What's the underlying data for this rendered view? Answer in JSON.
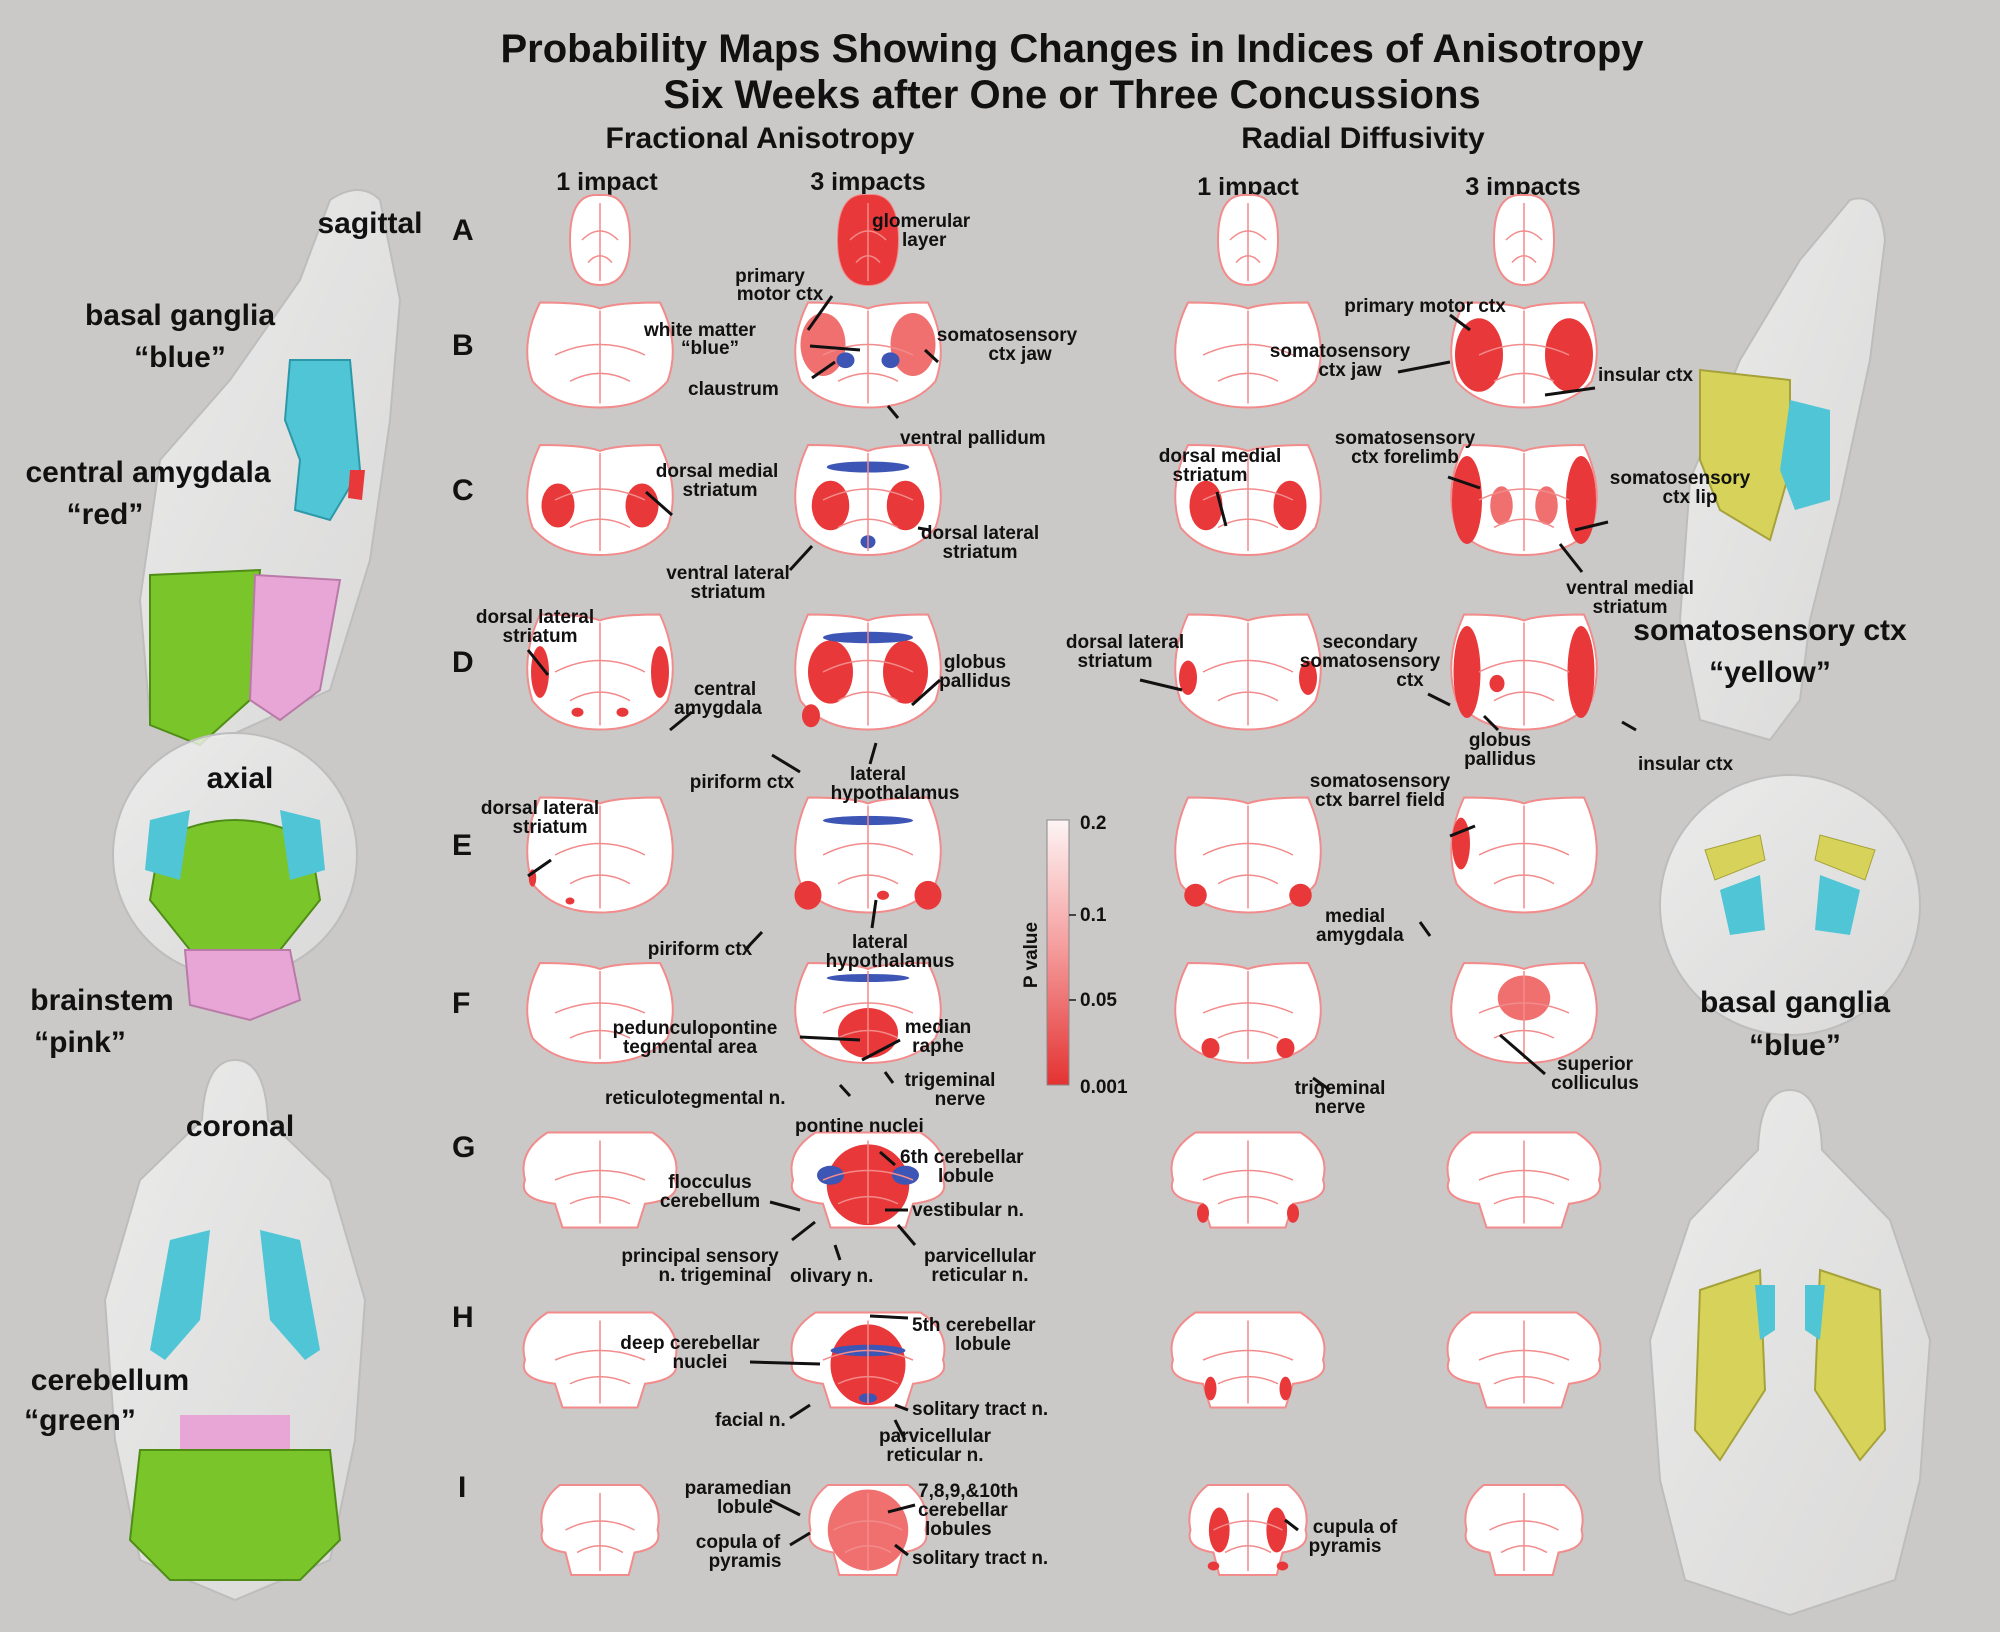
{
  "title": {
    "line1": "Probability Maps Showing Changes in Indices of Anisotropy",
    "line2": "Six Weeks after One or Three Concussions"
  },
  "columns": {
    "fa": "Fractional Anisotropy",
    "rd": "Radial Diffusivity",
    "one_impact": "1 impact",
    "three_impacts": "3 impacts"
  },
  "rows": [
    "A",
    "B",
    "C",
    "D",
    "E",
    "F",
    "G",
    "H",
    "I"
  ],
  "left_views": {
    "sagittal": "sagittal",
    "basal_ganglia_1": "basal ganglia",
    "blue_1": "“blue”",
    "central_amygdala": "central amygdala",
    "red": "“red”",
    "axial": "axial",
    "brainstem": "brainstem",
    "pink": "“pink”",
    "coronal": "coronal",
    "cerebellum": "cerebellum",
    "green": "“green”"
  },
  "right_views": {
    "somatosensory_ctx": "somatosensory ctx",
    "yellow": "“yellow”",
    "basal_ganglia_2": "basal ganglia",
    "blue_2": "“blue”"
  },
  "colorbar": {
    "axis_label": "P value",
    "ticks": [
      "0.2",
      "0.1",
      "0.05",
      "0.001"
    ],
    "tick_values": [
      0.2,
      0.1,
      0.05,
      0.001
    ],
    "color_low": "#e83a3a",
    "color_high": "#fdf2f2"
  },
  "colors": {
    "background": "#cbc9c7",
    "sig_red": "#e8383a",
    "mid_red": "#f07070",
    "outline_red": "#f28b8b",
    "blue": "#3d55b5",
    "cyan": "#4fc5d6",
    "green": "#7ac52a",
    "pink": "#e7a6d6",
    "yellow": "#d7d35a"
  },
  "labels": {
    "glomerular_1": "glomerular",
    "layer": "layer",
    "primary_1": "primary",
    "motor_ctx": "motor ctx",
    "white_matter": "white matter",
    "blue_wm": "“blue”",
    "claustrum": "claustrum",
    "somatosensory_jaw_1": "somatosensory",
    "ctx_jaw_1": "ctx jaw",
    "ventral_pallidum": "ventral pallidum",
    "primary_motor_ctx_rd": "primary motor ctx",
    "somatosensory_jaw_2": "somatosensory",
    "ctx_jaw_2": "ctx jaw",
    "insular_ctx_1": "insular ctx",
    "dms_1": "dorsal medial",
    "striatum_1": "striatum",
    "dls_c1": "dorsal lateral",
    "striatum_c1": "striatum",
    "vls_1": "ventral lateral",
    "striatum_v": "striatum",
    "dms_2": "dorsal medial",
    "striatum_2": "striatum",
    "ss_forelimb_1": "somatosensory",
    "ctx_forelimb": "ctx forelimb",
    "ss_lip_1": "somatosensory",
    "ctx_lip": "ctx lip",
    "vms_1": "ventral medial",
    "striatum_vm": "striatum",
    "dls_d1": "dorsal lateral",
    "striatum_d1": "striatum",
    "central_1": "central",
    "amygdala_1": "amygdala",
    "globus_1": "globus",
    "pallidus_1": "pallidus",
    "piriform_1": "piriform ctx",
    "lateral_1": "lateral",
    "hypothalamus_1": "hypothalamus",
    "dls_d2": "dorsal lateral",
    "striatum_d2": "striatum",
    "secondary": "secondary",
    "ss_2": "somatosensory",
    "ctx_2": "ctx",
    "globus_2": "globus",
    "pallidus_2": "pallidus",
    "insular_ctx_2": "insular ctx",
    "dls_e": "dorsal lateral",
    "striatum_e": "striatum",
    "piriform_2": "piriform ctx",
    "lateral_2": "lateral",
    "hypothalamus_2": "hypothalamus",
    "ss_barrel": "somatosensory",
    "ctx_barrel": "ctx barrel field",
    "medial": "medial",
    "amygdala_2": "amygdala",
    "pedunculo": "pedunculopontine",
    "tegmental": "tegmental area",
    "median": "median",
    "raphe": "raphe",
    "trigeminal_1": "trigeminal",
    "nerve_1": "nerve",
    "reticulo": "reticulotegmental n.",
    "pontine": "pontine nuclei",
    "trigeminal_2": "trigeminal",
    "nerve_2": "nerve",
    "superior": "superior",
    "colliculus": "colliculus",
    "sixth_1": "6th cerebellar",
    "lobule_6": "lobule",
    "flocculus": "flocculus",
    "cerebellum_lbl": "cerebellum",
    "vestibular": "vestibular n.",
    "principal": "principal sensory",
    "n_trigeminal": "n. trigeminal",
    "parvi_1": "parvicellular",
    "reticular_1": "reticular n.",
    "olivary": "olivary n.",
    "fifth_1": "5th cerebellar",
    "lobule_5": "lobule",
    "deep_1": "deep cerebellar",
    "nuclei": "nuclei",
    "facial": "facial n.",
    "solitary_1": "solitary tract n.",
    "parvi_2": "parvicellular",
    "reticular_2": "reticular n.",
    "paramedian": "paramedian",
    "lobule_p": "lobule",
    "seven": "7,8,9,&10th",
    "cerebellar_7": "cerebellar",
    "lobules": "lobules",
    "copula_1": "copula of",
    "pyramis_1": "pyramis",
    "solitary_2": "solitary tract n.",
    "cupula": "cupula of",
    "pyramis_2": "pyramis"
  }
}
